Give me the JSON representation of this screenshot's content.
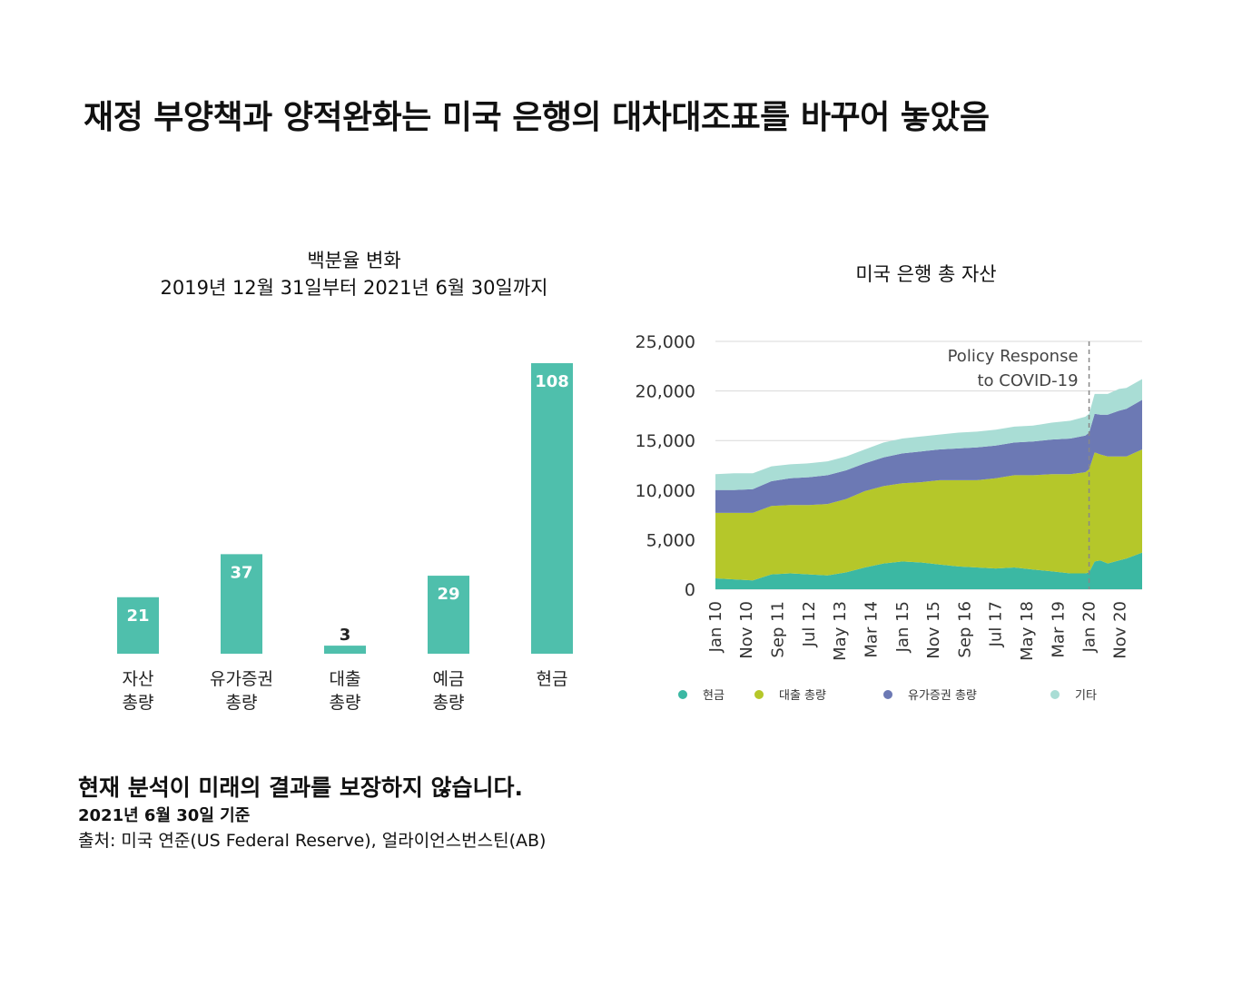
{
  "title": "재정 부양책과 양적완화는 미국 은행의 대차대조표를 바꾸어 놓았음",
  "left_chart": {
    "title_line1": "백분율 변화",
    "title_line2": "2019년 12월 31일부터 2021년 6월 30일까지"
  },
  "right_chart": {
    "title": "미국 은행 총 자산"
  },
  "footer": {
    "disclaimer": "현재 분석이 미래의 결과를 보장하지 않습니다.",
    "as_of": "2021년 6월 30일 기준",
    "source": "출처: 미국 연준(US Federal Reserve), 얼라이언스번스틴(AB)"
  },
  "colors": {
    "bar": "#4fbfac",
    "cash": "#3bb8a3",
    "loans": "#b5c72a",
    "securities": "#6c79b4",
    "other": "#a9ddd5"
  },
  "chart_data": [
    {
      "type": "bar",
      "title": "백분율 변화",
      "subtitle": "2019년 12월 31일부터 2021년 6월 30일까지",
      "categories": [
        [
          "자산",
          "총량"
        ],
        [
          "유가증권",
          "총량"
        ],
        [
          "대출",
          "총량"
        ],
        [
          "예금",
          "총량"
        ],
        [
          "현금"
        ]
      ],
      "values": [
        21,
        37,
        3,
        29,
        108
      ],
      "ylim": [
        0,
        110
      ],
      "grid": false,
      "legend": "none"
    },
    {
      "type": "area",
      "title": "미국 은행 총 자산",
      "stacked": true,
      "x": [
        2010.0,
        2010.5,
        2011.0,
        2011.5,
        2012.0,
        2012.5,
        2013.0,
        2013.5,
        2014.0,
        2014.5,
        2015.0,
        2015.5,
        2016.0,
        2016.5,
        2017.0,
        2017.5,
        2018.0,
        2018.5,
        2019.0,
        2019.5,
        2019.9,
        2020.0,
        2020.15,
        2020.3,
        2020.5,
        2020.8,
        2021.0,
        2021.42
      ],
      "x_ticks": [
        "Jan 10",
        "Nov 10",
        "Sep 11",
        "Jul 12",
        "May 13",
        "Mar 14",
        "Jan 15",
        "Nov 15",
        "Sep 16",
        "Jul 17",
        "May 18",
        "Mar 19",
        "Jan 20",
        "Nov 20"
      ],
      "x_tick_positions": [
        2010.0,
        2010.83,
        2011.67,
        2012.5,
        2013.33,
        2014.17,
        2015.0,
        2015.83,
        2016.67,
        2017.5,
        2018.33,
        2019.17,
        2020.0,
        2020.83
      ],
      "series": [
        {
          "name": "현금",
          "values": [
            1100,
            1000,
            900,
            1500,
            1600,
            1500,
            1400,
            1700,
            2200,
            2600,
            2800,
            2700,
            2500,
            2300,
            2200,
            2100,
            2200,
            2000,
            1800,
            1600,
            1600,
            1700,
            2800,
            2900,
            2600,
            2900,
            3100,
            3700
          ]
        },
        {
          "name": "대출 총량",
          "values": [
            6600,
            6700,
            6800,
            6900,
            6900,
            7000,
            7200,
            7400,
            7700,
            7800,
            7900,
            8100,
            8500,
            8700,
            8800,
            9100,
            9300,
            9500,
            9800,
            10000,
            10200,
            10400,
            11000,
            10700,
            10800,
            10500,
            10300,
            10400
          ]
        },
        {
          "name": "유가증권 총량",
          "values": [
            2300,
            2300,
            2400,
            2500,
            2700,
            2800,
            2900,
            2900,
            2800,
            2900,
            3000,
            3100,
            3100,
            3200,
            3300,
            3300,
            3300,
            3400,
            3500,
            3600,
            3700,
            3700,
            3900,
            4000,
            4200,
            4600,
            4800,
            5000
          ]
        },
        {
          "name": "기타",
          "values": [
            1600,
            1700,
            1600,
            1500,
            1400,
            1400,
            1400,
            1400,
            1400,
            1500,
            1500,
            1500,
            1500,
            1600,
            1600,
            1600,
            1600,
            1600,
            1700,
            1800,
            1900,
            1900,
            2000,
            2100,
            2100,
            2200,
            2100,
            2100
          ]
        }
      ],
      "ylim": [
        0,
        25000
      ],
      "y_ticks": [
        "0",
        "5,000",
        "10,000",
        "15,000",
        "20,000",
        "25,000"
      ],
      "y_tick_values": [
        0,
        5000,
        10000,
        15000,
        20000,
        25000
      ],
      "annotations": [
        {
          "text": "Policy Response to COVID-19",
          "x": 2020.0
        }
      ],
      "grid": true,
      "legend": "bottom"
    }
  ]
}
